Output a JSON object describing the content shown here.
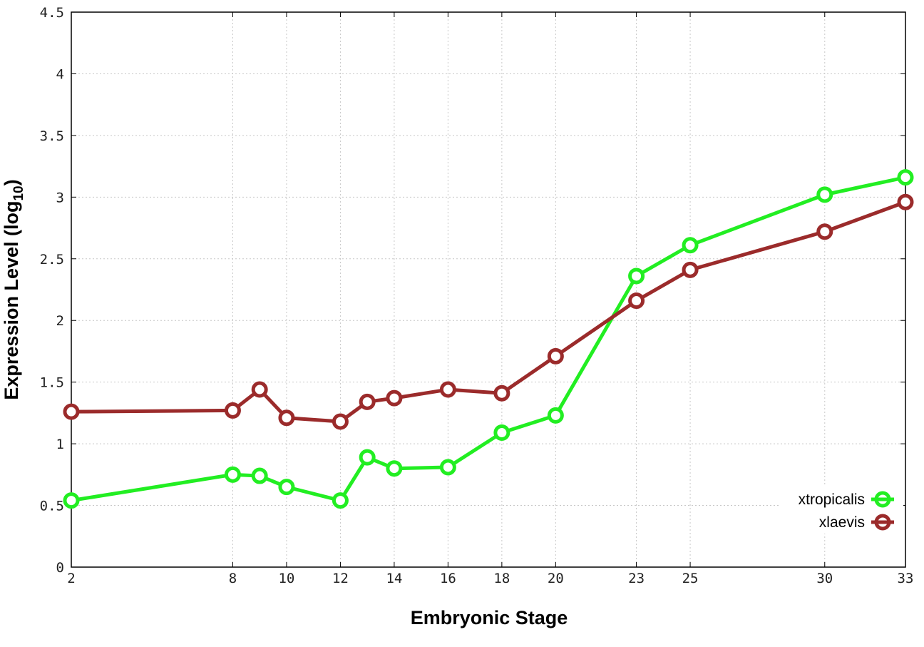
{
  "chart_data": {
    "type": "line",
    "title": "",
    "xlabel": "Embryonic Stage",
    "ylabel_main": "Expression Level (log",
    "ylabel_sub": "10",
    "ylabel_close": ")",
    "x_ticks": [
      2,
      8,
      10,
      12,
      14,
      16,
      18,
      20,
      23,
      25,
      30,
      33
    ],
    "y_ticks": [
      "0",
      "0.5",
      "1",
      "1.5",
      "2",
      "2.5",
      "3",
      "3.5",
      "4",
      "4.5"
    ],
    "xlim": [
      2,
      33
    ],
    "ylim": [
      0,
      4.5
    ],
    "grid": true,
    "legend_position": "bottom-right",
    "x": [
      2,
      8,
      9,
      10,
      12,
      13,
      14,
      16,
      18,
      20,
      23,
      25,
      30,
      33
    ],
    "series": [
      {
        "name": "xtropicalis",
        "color": "#22ee22",
        "values": [
          0.54,
          0.75,
          0.74,
          0.65,
          0.54,
          0.89,
          0.8,
          0.81,
          1.09,
          1.23,
          2.36,
          2.61,
          3.02,
          3.16
        ]
      },
      {
        "name": "xlaevis",
        "color": "#9b2b2b",
        "values": [
          1.26,
          1.27,
          1.44,
          1.21,
          1.18,
          1.34,
          1.37,
          1.44,
          1.41,
          1.71,
          2.16,
          2.41,
          2.72,
          2.96
        ]
      }
    ]
  }
}
